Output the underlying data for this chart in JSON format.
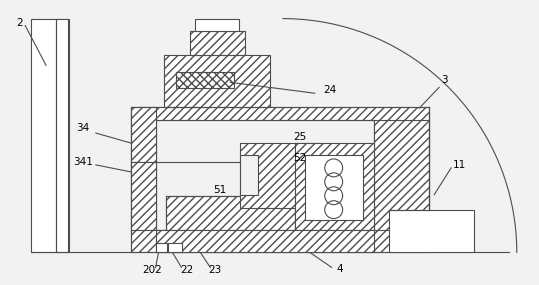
{
  "bg_color": "#f2f2f2",
  "line_color": "#4d4d4d",
  "fig_width": 5.39,
  "fig_height": 2.85,
  "dpi": 100
}
